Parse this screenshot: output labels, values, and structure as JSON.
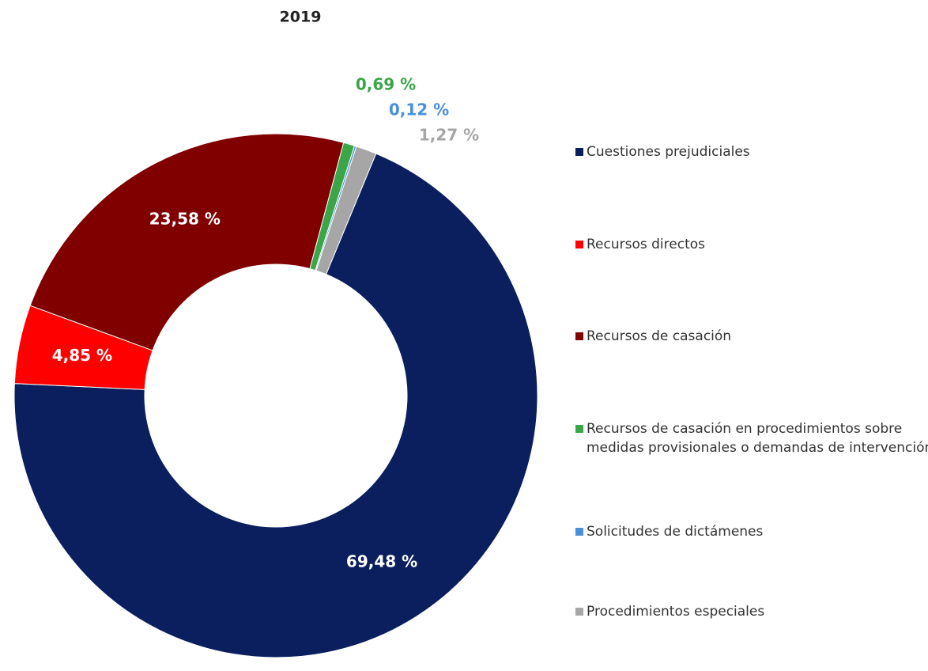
{
  "chart_data": {
    "type": "donut",
    "title": "2019",
    "categories": [
      "Cuestiones prejudiciales",
      "Recursos directos",
      "Recursos de casación",
      "Recursos de casación en procedimientos sobre medidas provisionales o demandas de intervención",
      "Solicitudes de dictámenes",
      "Procedimientos especiales"
    ],
    "values": [
      69.48,
      4.85,
      23.58,
      0.69,
      0.12,
      1.27
    ],
    "value_labels": [
      "69,48 %",
      "4,85 %",
      "23,58 %",
      "0,69 %",
      "0,12 %",
      "1,27 %"
    ],
    "colors": [
      "#0b1f5e",
      "#ff0000",
      "#800000",
      "#3aa648",
      "#4a90d9",
      "#a6a6a6"
    ],
    "legend": "right"
  }
}
